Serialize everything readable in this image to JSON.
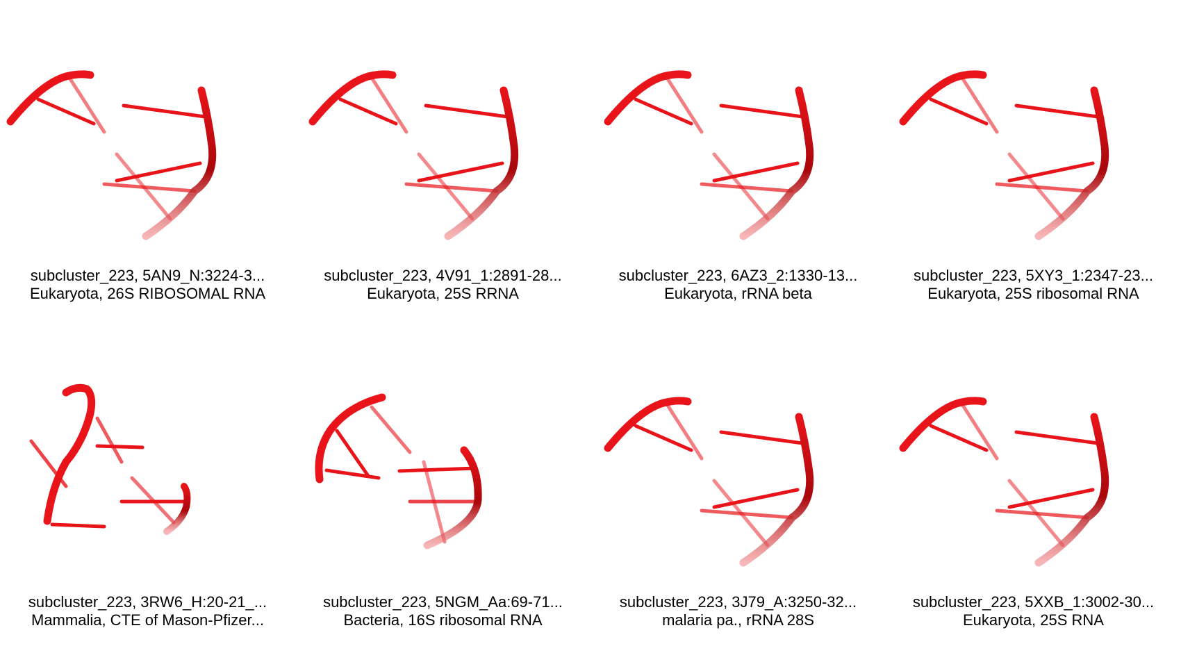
{
  "panels": [
    {
      "line1": "subcluster_223, 5AN9_N:3224-3...",
      "line2": "Eukaryota, 26S RIBOSOMAL RNA",
      "variant": "a"
    },
    {
      "line1": "subcluster_223, 4V91_1:2891-28...",
      "line2": "Eukaryota, 25S RRNA",
      "variant": "a"
    },
    {
      "line1": "subcluster_223, 6AZ3_2:1330-13...",
      "line2": "Eukaryota, rRNA beta",
      "variant": "a"
    },
    {
      "line1": "subcluster_223, 5XY3_1:2347-23...",
      "line2": "Eukaryota, 25S ribosomal RNA",
      "variant": "a"
    },
    {
      "line1": "subcluster_223, 3RW6_H:20-21_...",
      "line2": "Mammalia, CTE of Mason-Pfizer...",
      "variant": "b"
    },
    {
      "line1": "subcluster_223, 5NGM_Aa:69-71...",
      "line2": "Bacteria, 16S ribosomal RNA",
      "variant": "c"
    },
    {
      "line1": "subcluster_223, 3J79_A:3250-32...",
      "line2": "malaria pa., rRNA 28S",
      "variant": "a"
    },
    {
      "line1": "subcluster_223, 5XXB_1:3002-30...",
      "line2": "Eukaryota, 25S RNA",
      "variant": "a"
    }
  ],
  "colors": {
    "strand": "#e8141a",
    "strand_dark": "#a8070b",
    "strand_light": "#f07a7c"
  }
}
